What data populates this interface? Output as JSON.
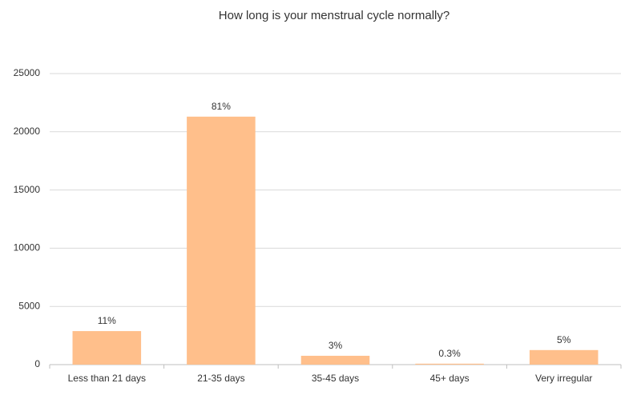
{
  "chart_data": {
    "type": "bar",
    "title": "How long is your menstrual cycle normally?",
    "categories": [
      "Less than 21 days",
      "21-35 days",
      "35-45 days",
      "45+ days",
      "Very irregular"
    ],
    "values": [
      2880,
      21300,
      760,
      80,
      1250
    ],
    "value_labels": [
      "11%",
      "81%",
      "3%",
      "0.3%",
      "5%"
    ],
    "color": "#ffbf8b",
    "ylim": [
      0,
      25000
    ],
    "yticks": [
      0,
      5000,
      10000,
      15000,
      20000,
      25000
    ],
    "grid": true
  }
}
